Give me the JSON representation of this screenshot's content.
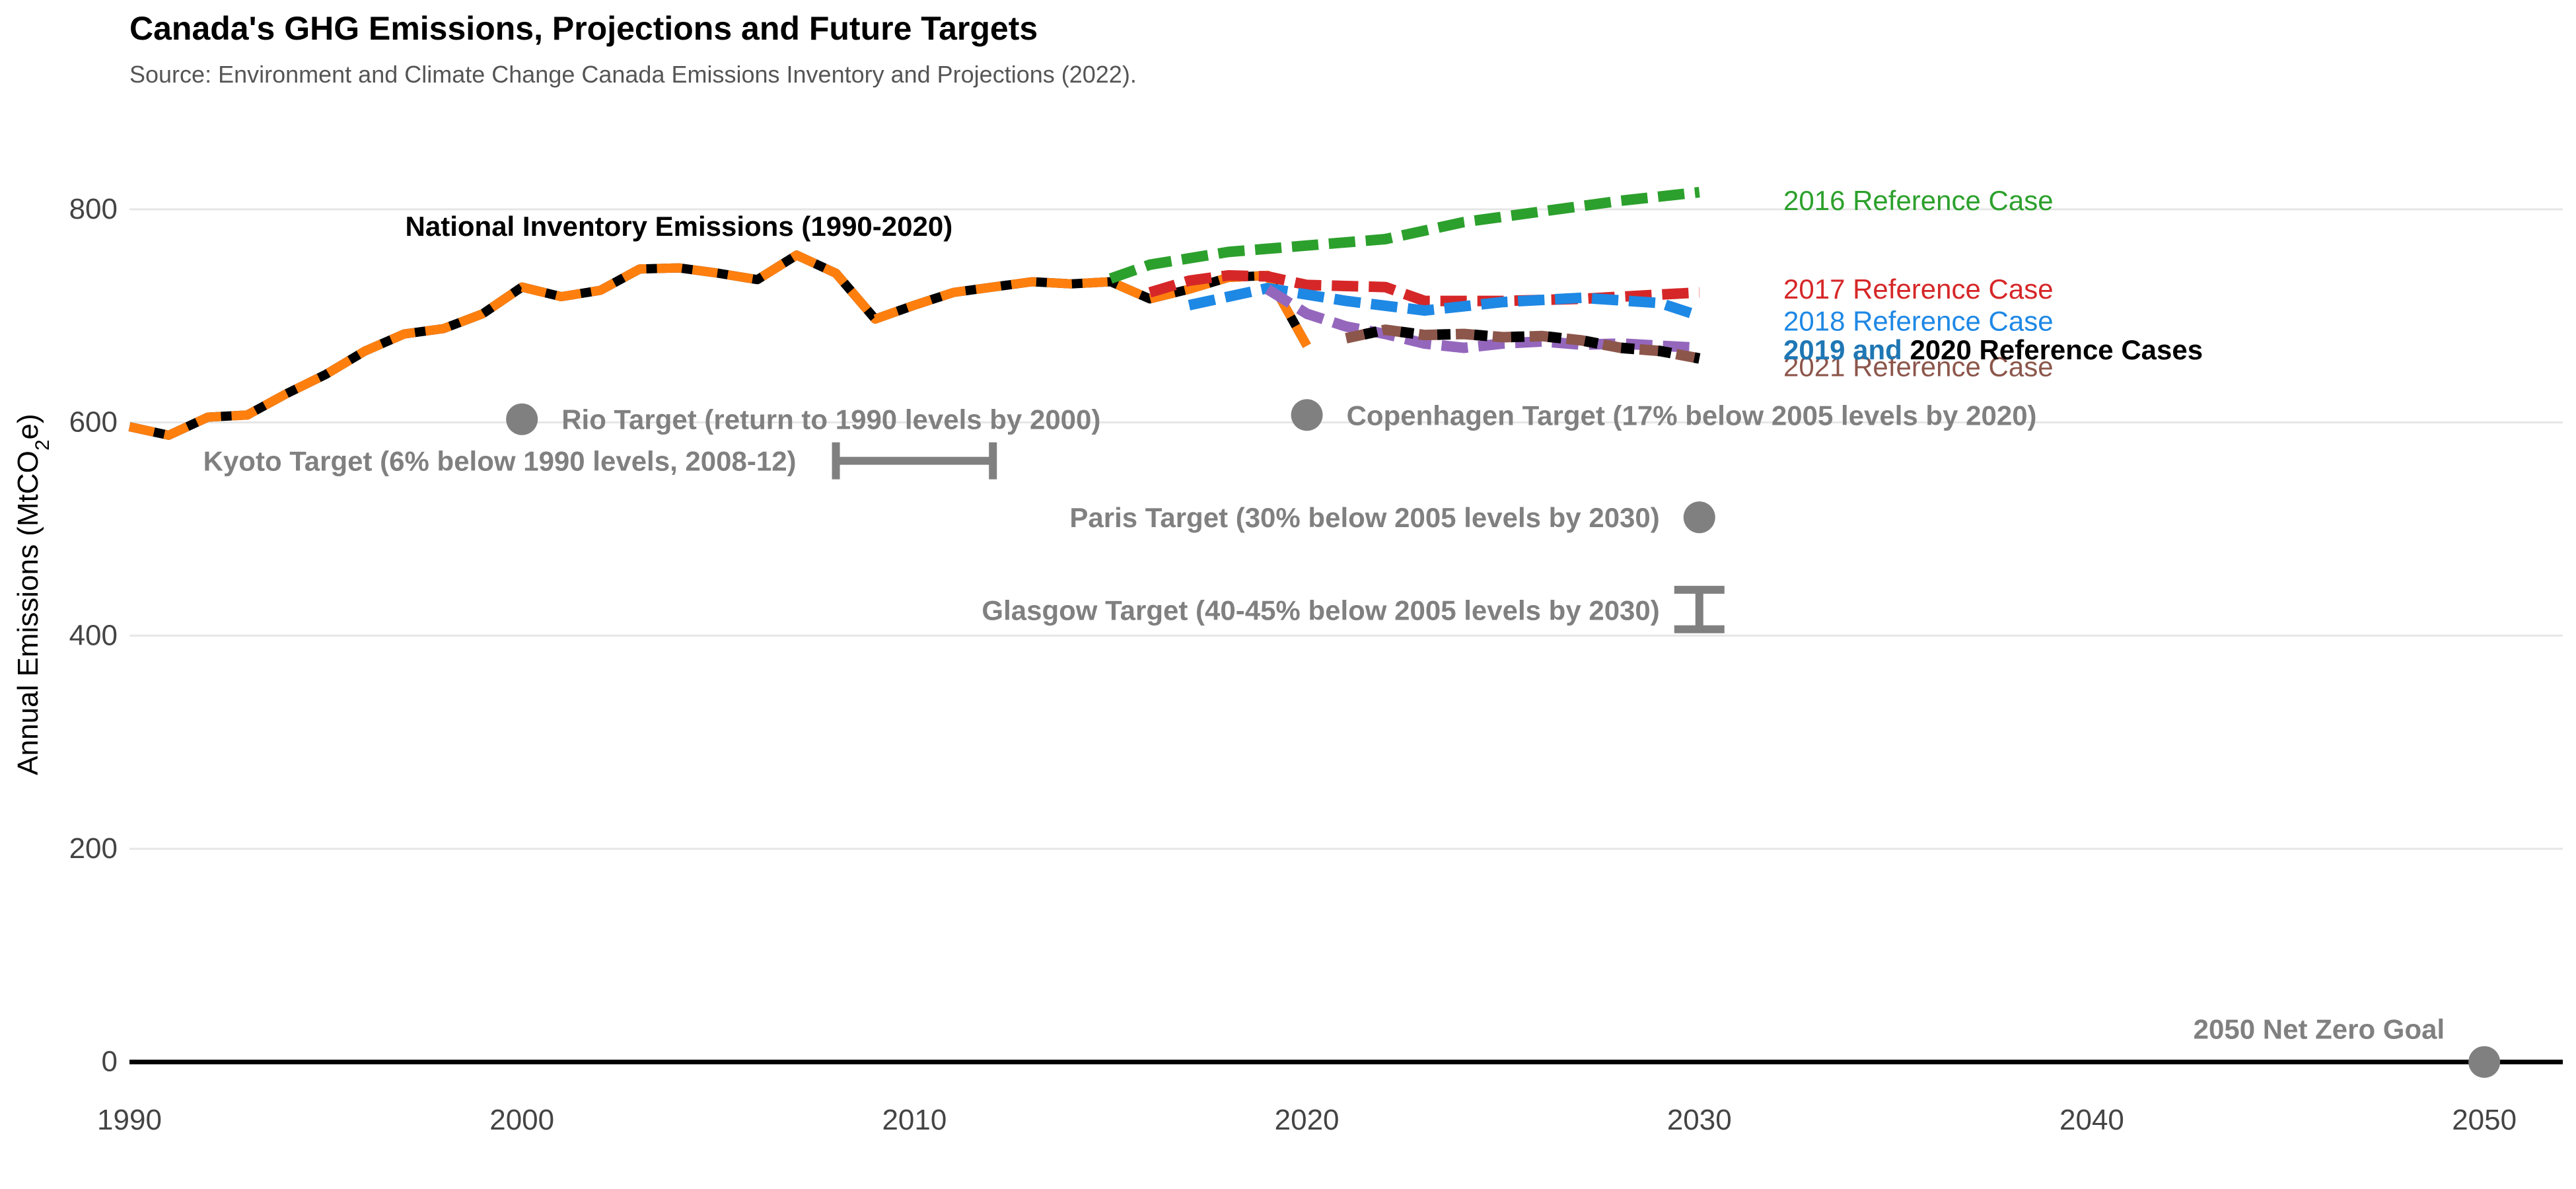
{
  "chart_data": {
    "type": "line",
    "title": "Canada's GHG Emissions, Projections and Future Targets",
    "subtitle": "Source: Environment and Climate Change Canada Emissions Inventory and Projections (2022).",
    "xlabel": "",
    "ylabel_main": "Annual Emissions (MtCO",
    "ylabel_sub": "2",
    "ylabel_end": "e)",
    "xlim": [
      1990,
      2052
    ],
    "ylim": [
      -20,
      860
    ],
    "x_ticks": [
      1990,
      2000,
      2010,
      2020,
      2030,
      2040,
      2050
    ],
    "y_ticks": [
      0,
      200,
      400,
      600,
      800
    ],
    "grid": "horizontal",
    "inventory": {
      "label": "National Inventory Emissions (1990-2020)",
      "color": "#000000",
      "overlay_color": "#ff7f0e",
      "x": [
        1990,
        1991,
        1992,
        1993,
        1994,
        1995,
        1996,
        1997,
        1998,
        1999,
        2000,
        2001,
        2002,
        2003,
        2004,
        2005,
        2006,
        2007,
        2008,
        2009,
        2010,
        2011,
        2012,
        2013,
        2014,
        2015,
        2016,
        2017,
        2018,
        2019,
        2020
      ],
      "y": [
        596,
        588,
        605,
        607,
        627,
        645,
        667,
        683,
        688,
        702,
        727,
        718,
        724,
        744,
        745,
        740,
        734,
        757,
        740,
        697,
        710,
        722,
        727,
        732,
        730,
        732,
        716,
        725,
        736,
        738,
        672
      ]
    },
    "series": [
      {
        "name": "2016 Reference Case",
        "color": "#2ca02c",
        "x": [
          2015,
          2016,
          2018,
          2020,
          2022,
          2024,
          2026,
          2028,
          2030
        ],
        "y": [
          735,
          748,
          760,
          766,
          772,
          788,
          798,
          808,
          816
        ]
      },
      {
        "name": "2017 Reference Case",
        "color": "#d62728",
        "x": [
          2016,
          2017,
          2018,
          2019,
          2020,
          2022,
          2023,
          2025,
          2027,
          2030
        ],
        "y": [
          722,
          733,
          738,
          737,
          729,
          727,
          714,
          714,
          716,
          722
        ]
      },
      {
        "name": "2018 Reference Case",
        "color": "#1e88e5",
        "x": [
          2017,
          2019,
          2021,
          2023,
          2025,
          2027,
          2029,
          2030
        ],
        "y": [
          710,
          726,
          714,
          705,
          713,
          717,
          712,
          700
        ]
      },
      {
        "name": "2019 and 2020 Reference Cases",
        "label_part1": "2019 and",
        "label_part2": "2020 Reference Cases",
        "color": "#9467bd",
        "x": [
          2019,
          2020,
          2021,
          2022,
          2023,
          2024,
          2025,
          2026,
          2027,
          2028,
          2029,
          2030
        ],
        "y": [
          725,
          702,
          690,
          683,
          674,
          670,
          674,
          676,
          673,
          674,
          672,
          670
        ]
      },
      {
        "name": "2021 Reference Case",
        "color": "#8c564b",
        "x": [
          2021,
          2022,
          2023,
          2024,
          2025,
          2026,
          2027,
          2028,
          2029,
          2030
        ],
        "y": [
          679,
          687,
          682,
          683,
          680,
          681,
          677,
          670,
          667,
          660
        ]
      }
    ],
    "targets": [
      {
        "name": "Rio Target (return to 1990 levels by 2000)",
        "kind": "point",
        "x": 2000,
        "y": 603
      },
      {
        "name": "Kyoto Target (6% below 1990 levels, 2008-12)",
        "kind": "hrange",
        "x": [
          2008,
          2012
        ],
        "y": 564
      },
      {
        "name": "Copenhagen Target (17% below 2005 levels by 2020)",
        "kind": "point",
        "x": 2020,
        "y": 607
      },
      {
        "name": "Paris Target (30% below 2005 levels by 2030)",
        "kind": "point",
        "x": 2030,
        "y": 511
      },
      {
        "name": "Glasgow Target (40-45% below 2005 levels by 2030)",
        "kind": "vrange",
        "x": 2030,
        "y": [
          406,
          443
        ]
      },
      {
        "name": "2050 Net Zero Goal",
        "kind": "point",
        "x": 2050,
        "y": 0
      }
    ],
    "annotation_color": "#808080",
    "zero_line_color": "#000000"
  }
}
